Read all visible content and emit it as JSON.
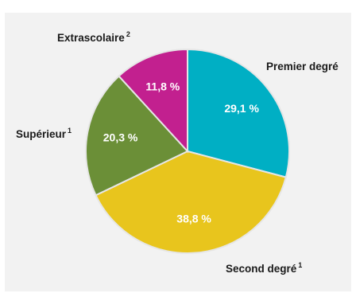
{
  "chart_data": {
    "type": "pie",
    "categories": [
      "Premier degré",
      "Second degré",
      "Supérieur",
      "Extrascolaire"
    ],
    "category_notes": [
      "",
      "1",
      "1",
      "2"
    ],
    "values": [
      29.1,
      38.8,
      20.3,
      11.8
    ],
    "value_labels": [
      "29,1 %",
      "38,8 %",
      "20,3 %",
      "11,8 %"
    ],
    "colors": [
      "#00afc4",
      "#e8c51d",
      "#6b8f37",
      "#c2208f"
    ],
    "start_angle_deg": 0,
    "direction": "clockwise"
  }
}
